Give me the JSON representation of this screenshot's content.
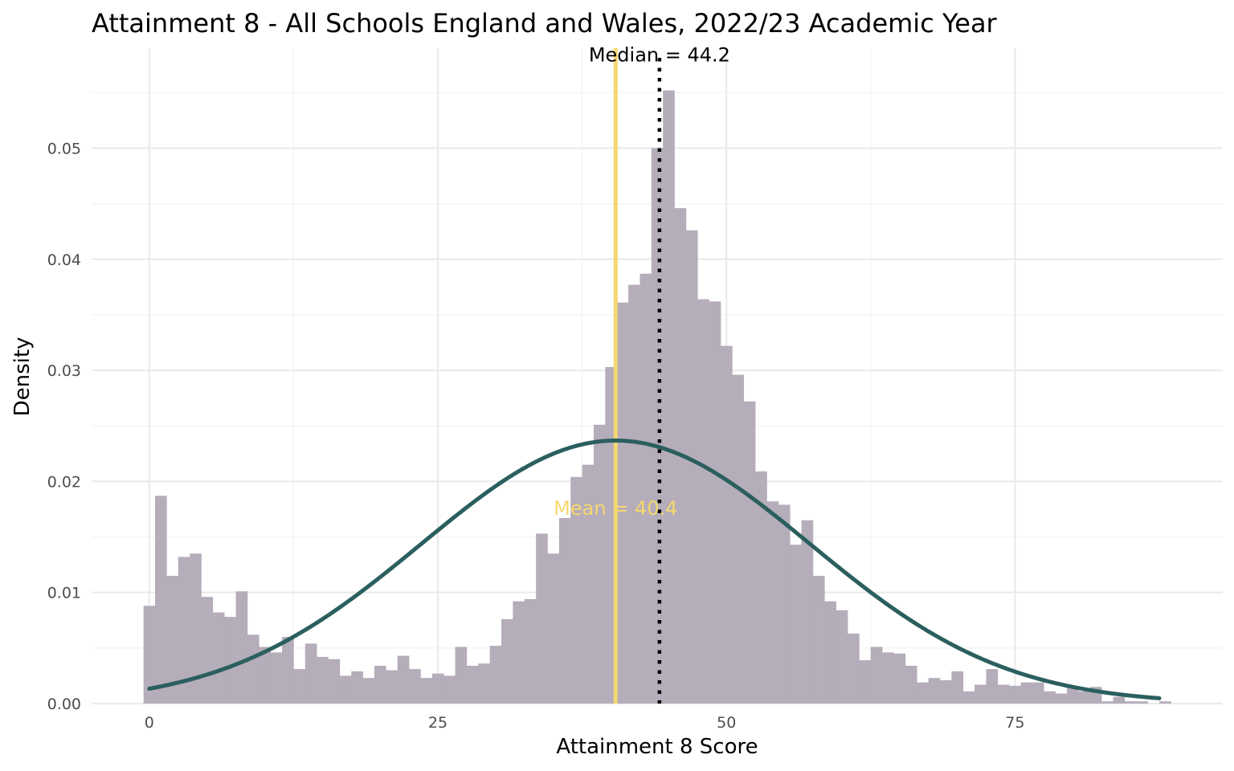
{
  "chart_data": {
    "type": "bar",
    "title": "Attainment 8 - All Schools England and Wales, 2022/23 Academic Year",
    "xlabel": "Attainment 8 Score",
    "ylabel": "Density",
    "xlim": [
      -5,
      93
    ],
    "ylim": [
      0,
      0.059
    ],
    "x_ticks": [
      0,
      25,
      50,
      75
    ],
    "x_tick_labels": [
      "0",
      "25",
      "50",
      "75"
    ],
    "y_ticks": [
      0,
      0.01,
      0.02,
      0.03,
      0.04,
      0.05
    ],
    "y_tick_labels": [
      "0.00",
      "0.01",
      "0.02",
      "0.03",
      "0.04",
      "0.05"
    ],
    "grid": true,
    "histogram": {
      "bin_start": -0.5,
      "bin_width": 1,
      "fill": "#b5adba",
      "values": [
        0.0088,
        0.0187,
        0.0115,
        0.0132,
        0.0135,
        0.0096,
        0.0082,
        0.0078,
        0.0101,
        0.0062,
        0.0051,
        0.0046,
        0.006,
        0.0031,
        0.0054,
        0.0042,
        0.004,
        0.0025,
        0.0029,
        0.0023,
        0.0034,
        0.003,
        0.0043,
        0.0031,
        0.0023,
        0.0027,
        0.0025,
        0.0051,
        0.0034,
        0.0036,
        0.0052,
        0.0076,
        0.0092,
        0.0094,
        0.0153,
        0.0135,
        0.0167,
        0.0204,
        0.0215,
        0.0251,
        0.0303,
        0.0361,
        0.0377,
        0.0387,
        0.05,
        0.0552,
        0.0446,
        0.0426,
        0.0364,
        0.0362,
        0.0322,
        0.0296,
        0.0272,
        0.0209,
        0.0182,
        0.0179,
        0.0143,
        0.0165,
        0.0115,
        0.0092,
        0.0084,
        0.0063,
        0.0039,
        0.0051,
        0.0046,
        0.0045,
        0.0034,
        0.0019,
        0.0023,
        0.0021,
        0.0029,
        0.0011,
        0.0017,
        0.0031,
        0.0017,
        0.0016,
        0.0019,
        0.0019,
        0.0011,
        0.0009,
        0.0015,
        0.0011,
        0.0015,
        0.0002,
        0.0006,
        0.0002,
        0.0002,
        0.0,
        0.0002
      ]
    },
    "normal_curve": {
      "mean": 40.4,
      "sd": 16.85,
      "x_range": [
        0,
        87.5
      ],
      "color": "#2b5f5f"
    },
    "reference_lines": [
      {
        "name": "mean",
        "x": 40.4,
        "color": "#f5d76e",
        "style": "solid",
        "label": "Mean = 40.4",
        "label_x": 40.4,
        "label_y": 0.0175
      },
      {
        "name": "median",
        "x": 44.2,
        "color": "#000000",
        "style": "dotted",
        "label": "Median = 44.2",
        "label_x": 44.2,
        "label_y": 0.0583
      }
    ]
  }
}
